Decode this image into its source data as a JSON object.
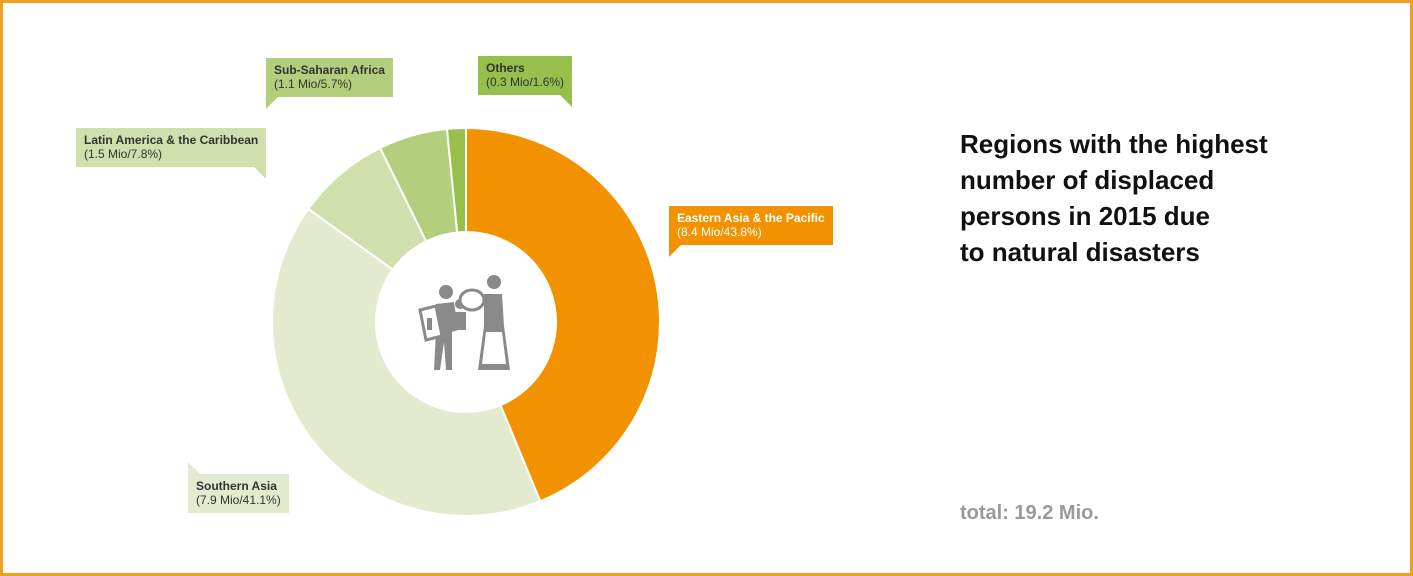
{
  "chart_data": {
    "type": "pie",
    "title_lines": [
      "Regions with the highest",
      "number of displaced",
      "persons in 2015 due",
      "to natural disasters"
    ],
    "total_label": "total: 19.2 Mio.",
    "slices": [
      {
        "name": "Eastern Asia & the Pacific",
        "value_label": "(8.4 Mio/43.8%)",
        "value": 8.4,
        "percent": 43.8,
        "color": "#f39200"
      },
      {
        "name": "Southern Asia",
        "value_label": "(7.9 Mio/41.1%)",
        "value": 7.9,
        "percent": 41.1,
        "color": "#e3ebcf"
      },
      {
        "name": "Latin America & the Caribbean",
        "value_label": "(1.5 Mio/7.8%)",
        "value": 1.5,
        "percent": 7.8,
        "color": "#d0e0ad"
      },
      {
        "name": "Sub-Saharan Africa",
        "value_label": "(1.1 Mio/5.7%)",
        "value": 1.1,
        "percent": 5.7,
        "color": "#b3cf7d"
      },
      {
        "name": "Others",
        "value_label": "(0.3 Mio/1.6%)",
        "value": 0.3,
        "percent": 1.6,
        "color": "#96c04b"
      }
    ],
    "center_icon": "displaced-persons-icon",
    "frame_color": "#f0a020"
  }
}
